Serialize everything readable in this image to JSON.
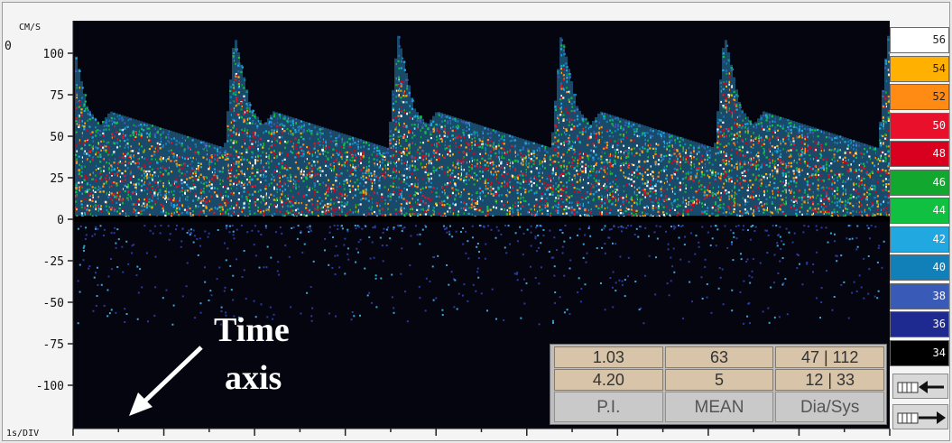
{
  "chart_data": {
    "type": "heatmap",
    "subtype": "doppler-spectral-waveform",
    "y_unit_label": "CM/S",
    "y_zero_label": "0",
    "x_scale_label": "1s/DIV",
    "ylim": [
      -112,
      112
    ],
    "yticks": [
      100,
      75,
      50,
      25,
      0,
      -25,
      -50,
      -75,
      -100
    ],
    "ytick_labels": [
      "100",
      "75",
      "50",
      "25",
      "0",
      "-25",
      "-50",
      "-75",
      "-100"
    ],
    "x_major_ticks": 9,
    "cycles": 5,
    "systolic_peak_velocity": 112,
    "end_diastolic_velocity": 47,
    "grid": false,
    "background_color": "#050510",
    "baseline_color": "#000000",
    "annotation": {
      "line1": "Time",
      "line2": "axis",
      "arrow": "points toward bottom-left corner of the plot"
    }
  },
  "measurements": {
    "rows": [
      {
        "pi": "1.03",
        "mean": "63",
        "dia_sys": "47 | 112"
      },
      {
        "pi": "4.20",
        "mean": "5",
        "dia_sys": "12 | 33"
      }
    ],
    "headers": {
      "pi": "P.I.",
      "mean": "MEAN",
      "dia_sys": "Dia/Sys"
    }
  },
  "color_scale": [
    {
      "value": "56",
      "color": "#ffffff"
    },
    {
      "value": "54",
      "color": "#ffb000"
    },
    {
      "value": "52",
      "color": "#ff8a14"
    },
    {
      "value": "50",
      "color": "#e8102a"
    },
    {
      "value": "48",
      "color": "#d8001e"
    },
    {
      "value": "46",
      "color": "#12a830"
    },
    {
      "value": "44",
      "color": "#10c040"
    },
    {
      "value": "42",
      "color": "#22a8e0"
    },
    {
      "value": "40",
      "color": "#1280b8"
    },
    {
      "value": "38",
      "color": "#3a5ab8"
    },
    {
      "value": "36",
      "color": "#1e2a90"
    },
    {
      "value": "34",
      "color": "#000000"
    }
  ],
  "controls": {
    "scroll_left_icon": "gate-arrow-left-icon",
    "scroll_right_icon": "gate-arrow-right-icon"
  }
}
